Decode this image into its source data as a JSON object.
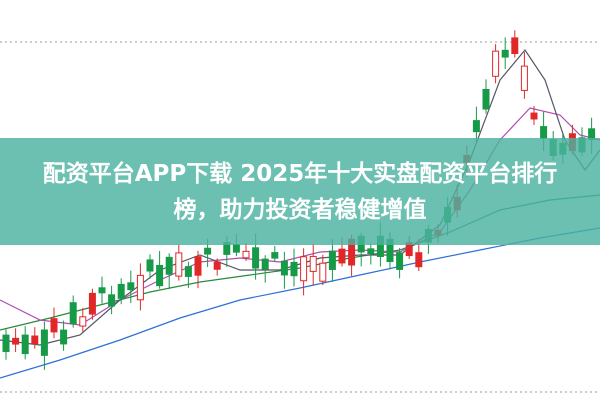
{
  "banner": {
    "title": "配资平台APP下载 2025年十大实盘配资平台排行榜，助力投资者稳健增值"
  }
}
